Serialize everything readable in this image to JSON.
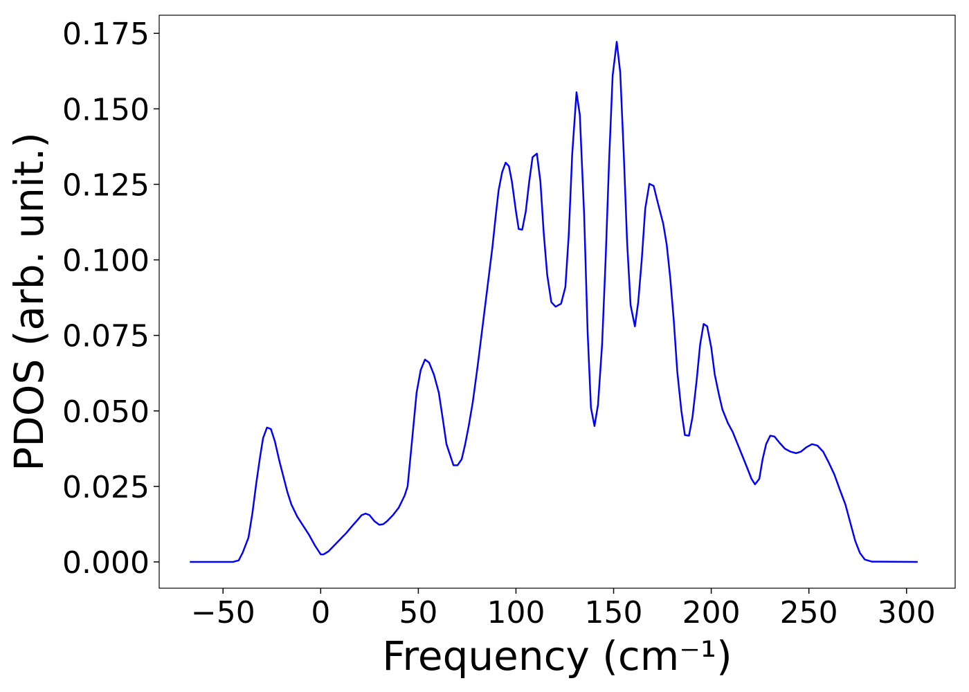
{
  "chart_data": {
    "type": "line",
    "xlabel": "Frequency (cm⁻¹)",
    "ylabel": "PDOS (arb. unit.)",
    "xlim": [
      -82.7,
      324.9
    ],
    "ylim": [
      -0.0087,
      0.181
    ],
    "xticks": [
      {
        "value": -50,
        "label": "−50"
      },
      0,
      50,
      100,
      150,
      200,
      250,
      300
    ],
    "yticks": [
      {
        "value": 0,
        "label": "0.000"
      },
      {
        "value": 0.025,
        "label": "0.025"
      },
      {
        "value": 0.05,
        "label": "0.050"
      },
      {
        "value": 0.075,
        "label": "0.075"
      },
      {
        "value": 0.1,
        "label": "0.100"
      },
      {
        "value": 0.125,
        "label": "0.125"
      },
      {
        "value": 0.15,
        "label": "0.150"
      },
      {
        "value": 0.175,
        "label": "0.175"
      }
    ],
    "grid": false,
    "series": [
      {
        "name": "PDOS",
        "color": "#0000ff",
        "x": [
          -67,
          -45,
          -42,
          -40,
          -37,
          -35,
          -33,
          -31,
          -29.5,
          -27.5,
          -25.5,
          -23.5,
          -21,
          -19,
          -17,
          -15,
          -12,
          -9,
          -6,
          -3,
          -1,
          0,
          1.5,
          4,
          7,
          10,
          13,
          16,
          19,
          21,
          23,
          25,
          27.5,
          30,
          32,
          34,
          37,
          40,
          43,
          44.5,
          46.6,
          49.1,
          51.2,
          53.4,
          55.5,
          58,
          60.5,
          62.6,
          64.4,
          66.2,
          68,
          70.1,
          72.2,
          74,
          75.8,
          77.9,
          80.4,
          82.9,
          85.4,
          87.9,
          89.7,
          91.1,
          92.9,
          94.7,
          96.4,
          97.9,
          100,
          101.4,
          103.2,
          105,
          106.8,
          108.5,
          110.7,
          112.5,
          114.2,
          116,
          118.1,
          120.3,
          123.1,
          125.3,
          127,
          128.8,
          131,
          132.7,
          134.9,
          136.7,
          138.4,
          140.2,
          142,
          144.1,
          145.9,
          147.7,
          149.5,
          151.6,
          153.4,
          155.2,
          156.9,
          158.7,
          160.9,
          162.6,
          164.4,
          166.2,
          168.3,
          170.5,
          172.6,
          175.4,
          177.2,
          179,
          180.8,
          182.6,
          184.7,
          186.5,
          188.6,
          190.4,
          192.5,
          194.3,
          196.1,
          197.9,
          200,
          201.8,
          203.9,
          205.7,
          208.5,
          211,
          213.5,
          216,
          218.5,
          220.6,
          222.4,
          224.6,
          226.3,
          228.1,
          230.2,
          232.4,
          234.9,
          237.7,
          240.6,
          243.4,
          245.9,
          248.8,
          251.6,
          254.4,
          257.3,
          260.1,
          263,
          265.8,
          268.7,
          271.2,
          273.7,
          276.1,
          278.6,
          282.2,
          305.7
        ],
        "values": [
          0,
          0,
          0.0005,
          0.003,
          0.008,
          0.016,
          0.026,
          0.035,
          0.041,
          0.0445,
          0.044,
          0.04,
          0.033,
          0.028,
          0.023,
          0.019,
          0.015,
          0.012,
          0.009,
          0.0055,
          0.0035,
          0.0025,
          0.0025,
          0.0035,
          0.0055,
          0.0075,
          0.0095,
          0.0118,
          0.014,
          0.0155,
          0.016,
          0.0155,
          0.0135,
          0.0123,
          0.0125,
          0.0135,
          0.0155,
          0.018,
          0.022,
          0.025,
          0.039,
          0.056,
          0.0635,
          0.067,
          0.066,
          0.062,
          0.056,
          0.047,
          0.039,
          0.0355,
          0.032,
          0.032,
          0.034,
          0.039,
          0.045,
          0.053,
          0.065,
          0.078,
          0.091,
          0.104,
          0.115,
          0.123,
          0.129,
          0.1322,
          0.131,
          0.126,
          0.116,
          0.1102,
          0.11,
          0.116,
          0.126,
          0.134,
          0.1352,
          0.126,
          0.109,
          0.095,
          0.086,
          0.0845,
          0.0855,
          0.091,
          0.108,
          0.135,
          0.1555,
          0.148,
          0.115,
          0.076,
          0.051,
          0.045,
          0.052,
          0.072,
          0.1,
          0.133,
          0.161,
          0.1722,
          0.162,
          0.135,
          0.106,
          0.085,
          0.078,
          0.086,
          0.1,
          0.117,
          0.1252,
          0.1245,
          0.119,
          0.112,
          0.105,
          0.094,
          0.08,
          0.063,
          0.05,
          0.042,
          0.0418,
          0.048,
          0.06,
          0.072,
          0.0788,
          0.078,
          0.071,
          0.062,
          0.0555,
          0.0505,
          0.046,
          0.043,
          0.039,
          0.035,
          0.031,
          0.0275,
          0.0257,
          0.0275,
          0.034,
          0.039,
          0.0418,
          0.0415,
          0.0395,
          0.0375,
          0.0365,
          0.036,
          0.0365,
          0.038,
          0.039,
          0.0385,
          0.0365,
          0.033,
          0.029,
          0.024,
          0.019,
          0.013,
          0.007,
          0.003,
          0.0008,
          0.0001,
          0
        ]
      }
    ]
  }
}
